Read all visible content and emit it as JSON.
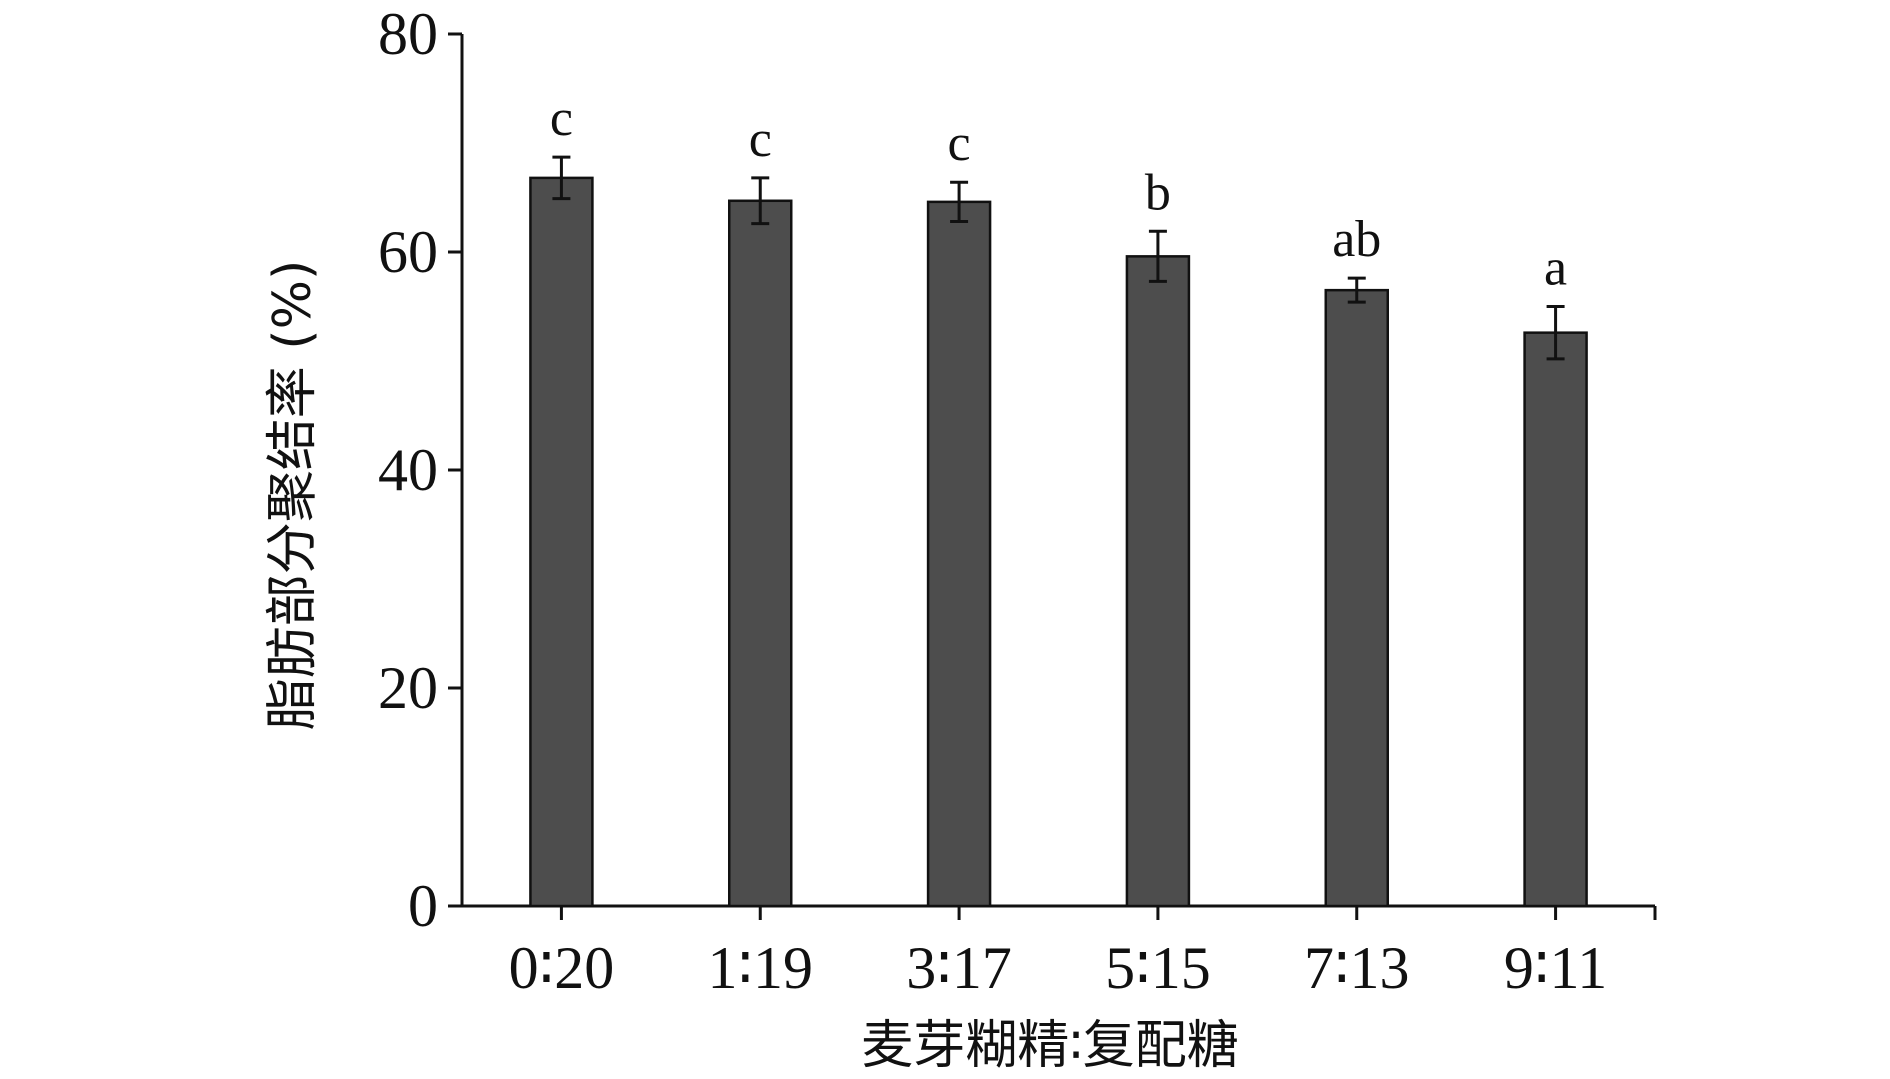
{
  "chart_data": {
    "type": "bar",
    "categories": [
      "0∶20",
      "1∶19",
      "3∶17",
      "5∶15",
      "7∶13",
      "9∶11"
    ],
    "values": [
      66.8,
      64.7,
      64.6,
      59.6,
      56.5,
      52.6
    ],
    "errors": [
      1.9,
      2.1,
      1.8,
      2.3,
      1.1,
      2.4
    ],
    "significance_labels": [
      "c",
      "c",
      "c",
      "b",
      "ab",
      "a"
    ],
    "xlabel": "麦芽糊精∶复配糖",
    "ylabel": "脂肪部分聚结率 (%)",
    "ylim": [
      0,
      80
    ],
    "yticks": [
      0,
      20,
      40,
      60,
      80
    ],
    "grid": false,
    "bar_color": "#4d4d4d"
  }
}
